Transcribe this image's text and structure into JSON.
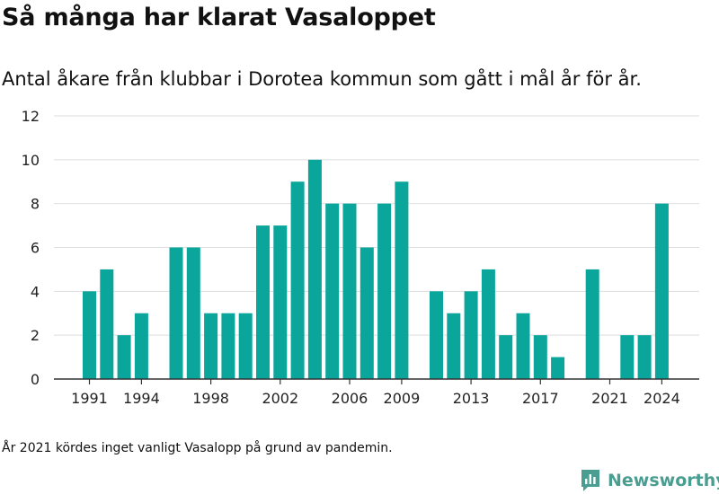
{
  "header": {
    "title": "Så många har klarat Vasaloppet",
    "subtitle": "Antal åkare från klubbar i Dorotea kommun som gått i mål år för år."
  },
  "footer": {
    "note": "År 2021 kördes inget vanligt Vasalopp på grund av pandemin.",
    "brand": "Newsworthy",
    "brand_icon": "newsworthy-logo-icon",
    "brand_color": "#4a9d91"
  },
  "chart_data": {
    "type": "bar",
    "bar_color": "#0aa69b",
    "x": [
      1991,
      1992,
      1993,
      1994,
      1995,
      1996,
      1997,
      1998,
      1999,
      2000,
      2001,
      2002,
      2003,
      2004,
      2005,
      2006,
      2007,
      2008,
      2009,
      2010,
      2011,
      2012,
      2013,
      2014,
      2015,
      2016,
      2017,
      2018,
      2019,
      2020,
      2021,
      2022,
      2023,
      2024
    ],
    "values": [
      4,
      5,
      2,
      3,
      0,
      6,
      6,
      3,
      3,
      3,
      7,
      7,
      9,
      10,
      8,
      8,
      6,
      8,
      9,
      0,
      4,
      3,
      4,
      5,
      2,
      3,
      2,
      1,
      0,
      5,
      0,
      2,
      2,
      8
    ],
    "xticks": [
      1991,
      1994,
      1998,
      2002,
      2006,
      2009,
      2013,
      2017,
      2021,
      2024
    ],
    "yticks": [
      0,
      2,
      4,
      6,
      8,
      10,
      12
    ],
    "ylim": [
      0,
      12
    ],
    "grid": true
  }
}
